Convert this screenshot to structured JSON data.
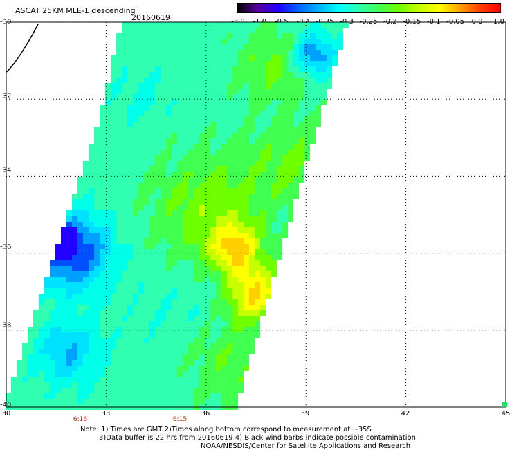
{
  "title": "ASCAT 25KM MLE-1 descending",
  "date": "20160619",
  "colorbar": {
    "labels": [
      "-3.0",
      "-1.0",
      "-0.5",
      "-0.4",
      "-0.35",
      "-0.3",
      "-0.25",
      "-0.2",
      "-0.15",
      "-0.1",
      "-0.05",
      "0.0",
      "1.0"
    ],
    "colors": [
      "#000000",
      "#5a00a0",
      "#2000ff",
      "#0060ff",
      "#00b0ff",
      "#00ffff",
      "#30ffb0",
      "#40ff50",
      "#70ff00",
      "#c8ff00",
      "#ffff00",
      "#ffa000",
      "#ff4000",
      "#ff0000"
    ]
  },
  "axes": {
    "lat_labels": [
      "-30",
      "-32",
      "-34",
      "-36",
      "-38",
      "-40"
    ],
    "lon_labels": [
      "30",
      "33",
      "36",
      "39",
      "42",
      "45"
    ],
    "lat_range": [
      -40,
      -30
    ],
    "lon_range": [
      30,
      45
    ]
  },
  "times": [
    "6:16",
    "6:15"
  ],
  "notes": [
    "Note: 1) Times are GMT 2)Times along bottom correspond to measurement at ~35S",
    "3)Data buffer is 22 hrs from 20160619 4) Black wind barbs indicate possible contamination",
    "NOAA/NESDIS/Center for Satellite Applications and Research"
  ]
}
